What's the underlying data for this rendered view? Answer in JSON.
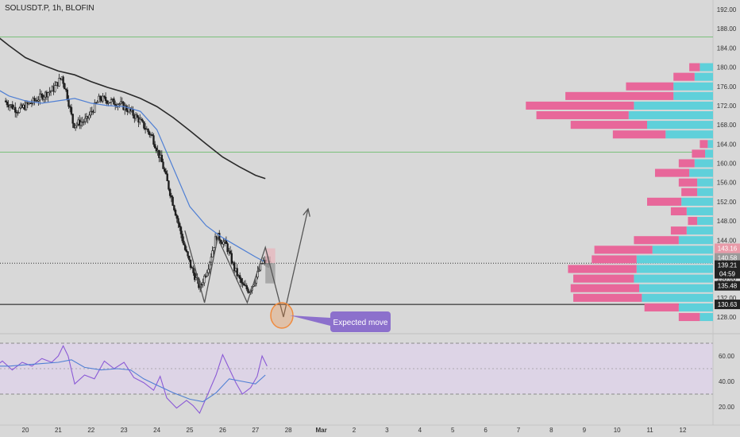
{
  "header": {
    "symbol": "SOLUSDT.P, 1h, BLOFIN"
  },
  "colors": {
    "background": "#d8d8d8",
    "candle_body": "#1e1e1e",
    "ma_fast": "#4f7fd4",
    "ma_slow": "#2a2a2a",
    "support_line": "#111111",
    "resistance_line": "#6ebd6e",
    "vp_up": "#5fd0da",
    "vp_down": "#e8679a",
    "rsi_line": "#8b5ad6",
    "rsi_ma": "#4f7fd4",
    "rsi_band": "#ddd4e6",
    "callout": "#8c70cc",
    "circle": "#f08a3c"
  },
  "chart_data": [
    {
      "type": "candlestick",
      "title": "SOLUSDT.P, 1h, BLOFIN",
      "ylim": [
        126,
        193
      ],
      "y_ticks": [
        "192.00",
        "188.00",
        "184.00",
        "180.00",
        "176.00",
        "172.00",
        "168.00",
        "164.00",
        "160.00",
        "156.00",
        "152.00",
        "148.00",
        "144.00",
        "140.00",
        "136.00",
        "132.00",
        "128.00"
      ],
      "x_ticks": [
        "20",
        "21",
        "22",
        "23",
        "24",
        "25",
        "26",
        "27",
        "28",
        "Mar",
        "2",
        "3",
        "4",
        "5",
        "6",
        "7",
        "8",
        "9",
        "10",
        "11",
        "12"
      ],
      "ohlc_anchors": [
        {
          "t": 19.4,
          "price": 173.0
        },
        {
          "t": 19.8,
          "price": 171.0
        },
        {
          "t": 20.2,
          "price": 172.5
        },
        {
          "t": 20.6,
          "price": 174.2
        },
        {
          "t": 20.9,
          "price": 175.5
        },
        {
          "t": 21.15,
          "price": 178.0
        },
        {
          "t": 21.3,
          "price": 174.5
        },
        {
          "t": 21.5,
          "price": 168.0
        },
        {
          "t": 21.9,
          "price": 169.0
        },
        {
          "t": 22.3,
          "price": 173.5
        },
        {
          "t": 22.9,
          "price": 172.4
        },
        {
          "t": 23.2,
          "price": 171.0
        },
        {
          "t": 23.5,
          "price": 169.0
        },
        {
          "t": 23.9,
          "price": 165.5
        },
        {
          "t": 24.2,
          "price": 160.0
        },
        {
          "t": 24.6,
          "price": 150.0
        },
        {
          "t": 24.9,
          "price": 142.0
        },
        {
          "t": 25.1,
          "price": 138.0
        },
        {
          "t": 25.35,
          "price": 134.0
        },
        {
          "t": 25.6,
          "price": 138.5
        },
        {
          "t": 25.85,
          "price": 145.0
        },
        {
          "t": 26.15,
          "price": 143.0
        },
        {
          "t": 26.4,
          "price": 138.0
        },
        {
          "t": 26.65,
          "price": 134.5
        },
        {
          "t": 26.85,
          "price": 133.5
        },
        {
          "t": 27.05,
          "price": 136.0
        },
        {
          "t": 27.25,
          "price": 139.5
        },
        {
          "t": 27.45,
          "price": 139.21
        }
      ],
      "series": [
        {
          "name": "",
          "values": [
            [
              19.0,
              176.0
            ],
            [
              19.5,
              174.0
            ],
            [
              20.0,
              173.0
            ],
            [
              20.5,
              172.5
            ],
            [
              21.0,
              173.0
            ],
            [
              21.5,
              173.5
            ],
            [
              22.0,
              172.5
            ],
            [
              22.5,
              172.0
            ],
            [
              23.0,
              171.8
            ],
            [
              23.5,
              170.8
            ],
            [
              24.0,
              167.0
            ],
            [
              24.5,
              159.0
            ],
            [
              25.0,
              151.0
            ],
            [
              25.5,
              147.0
            ],
            [
              26.0,
              144.5
            ],
            [
              26.5,
              142.5
            ],
            [
              27.0,
              140.5
            ],
            [
              27.25,
              139.6
            ]
          ]
        },
        {
          "name": "",
          "values": [
            [
              19.0,
              187.2
            ],
            [
              19.5,
              184.5
            ],
            [
              20.0,
              182.0
            ],
            [
              20.5,
              180.5
            ],
            [
              21.0,
              179.2
            ],
            [
              21.5,
              178.4
            ],
            [
              22.0,
              177.0
            ],
            [
              22.5,
              175.8
            ],
            [
              23.0,
              174.8
            ],
            [
              23.5,
              173.5
            ],
            [
              24.0,
              171.8
            ],
            [
              24.5,
              169.5
            ],
            [
              25.0,
              166.8
            ],
            [
              25.5,
              164.0
            ],
            [
              26.0,
              161.3
            ],
            [
              26.5,
              159.3
            ],
            [
              27.0,
              157.5
            ],
            [
              27.3,
              156.8
            ]
          ]
        }
      ],
      "horizontal_lines": [
        {
          "price": 186.3,
          "kind": "resistance"
        },
        {
          "price": 162.3,
          "kind": "resistance"
        },
        {
          "price": 130.63,
          "kind": "support"
        }
      ],
      "price_labels": [
        {
          "text": "143.16",
          "price": 142.3,
          "color": "#e89aa8"
        },
        {
          "text": "140.58",
          "price": 140.3,
          "color": "#9a9a9a"
        },
        {
          "text": "139.21",
          "price": 138.8,
          "color": "#222222"
        },
        {
          "text": "04:59",
          "price": 137.0,
          "color": "#222222"
        },
        {
          "text": "135.48",
          "price": 134.5,
          "color": "#222222"
        },
        {
          "text": "130.63",
          "price": 130.63,
          "color": "#222222"
        }
      ],
      "pattern_path": [
        [
          24.85,
          146.0
        ],
        [
          25.45,
          131.0
        ],
        [
          25.85,
          144.5
        ],
        [
          26.75,
          131.0
        ],
        [
          27.3,
          142.5
        ],
        [
          27.85,
          128.0
        ],
        [
          28.6,
          150.5
        ]
      ],
      "projection_box": {
        "t0": 27.3,
        "t1": 27.6,
        "entry": 139.21,
        "target": 142.3,
        "stop": 135.0
      },
      "annotation": {
        "text": "Expected move"
      },
      "volume_profile": {
        "price_step": 2,
        "rows": [
          {
            "price": 180,
            "up": 1.0,
            "down": 0.8
          },
          {
            "price": 178,
            "up": 1.4,
            "down": 1.6
          },
          {
            "price": 176,
            "up": 3.0,
            "down": 3.6
          },
          {
            "price": 174,
            "up": 3.0,
            "down": 8.2
          },
          {
            "price": 172,
            "up": 6.0,
            "down": 8.2
          },
          {
            "price": 170,
            "up": 6.4,
            "down": 7.0
          },
          {
            "price": 168,
            "up": 5.0,
            "down": 5.8
          },
          {
            "price": 166,
            "up": 3.6,
            "down": 4.0
          },
          {
            "price": 164,
            "up": 0.4,
            "down": 0.6
          },
          {
            "price": 162,
            "up": 0.6,
            "down": 1.0
          },
          {
            "price": 160,
            "up": 1.4,
            "down": 1.2
          },
          {
            "price": 158,
            "up": 1.8,
            "down": 2.6
          },
          {
            "price": 156,
            "up": 1.2,
            "down": 1.4
          },
          {
            "price": 154,
            "up": 1.2,
            "down": 1.2
          },
          {
            "price": 152,
            "up": 2.4,
            "down": 2.6
          },
          {
            "price": 150,
            "up": 2.0,
            "down": 1.2
          },
          {
            "price": 148,
            "up": 1.2,
            "down": 0.7
          },
          {
            "price": 146,
            "up": 2.0,
            "down": 1.2
          },
          {
            "price": 144,
            "up": 2.6,
            "down": 3.4
          },
          {
            "price": 142,
            "up": 4.6,
            "down": 4.4
          },
          {
            "price": 140,
            "up": 5.8,
            "down": 3.4
          },
          {
            "price": 138,
            "up": 5.8,
            "down": 5.2
          },
          {
            "price": 136,
            "up": 6.0,
            "down": 4.6
          },
          {
            "price": 134,
            "up": 5.6,
            "down": 5.2
          },
          {
            "price": 132,
            "up": 5.4,
            "down": 5.2
          },
          {
            "price": 130,
            "up": 2.6,
            "down": 2.6
          },
          {
            "price": 128,
            "up": 1.0,
            "down": 1.6
          }
        ]
      }
    },
    {
      "type": "line",
      "title": "",
      "ylim": [
        12,
        72
      ],
      "y_ticks": [
        "60.00",
        "40.00",
        "20.00"
      ],
      "band": [
        30,
        70
      ],
      "midline": 50,
      "series": [
        {
          "name": "",
          "values": [
            [
              19.0,
              50.0
            ],
            [
              19.3,
              56.0
            ],
            [
              19.6,
              49.0
            ],
            [
              19.9,
              55.0
            ],
            [
              20.2,
              52.0
            ],
            [
              20.5,
              58.0
            ],
            [
              20.8,
              55.0
            ],
            [
              21.0,
              60.0
            ],
            [
              21.15,
              68.0
            ],
            [
              21.3,
              60.0
            ],
            [
              21.5,
              38.0
            ],
            [
              21.8,
              45.0
            ],
            [
              22.1,
              42.0
            ],
            [
              22.4,
              56.0
            ],
            [
              22.7,
              50.0
            ],
            [
              23.0,
              55.0
            ],
            [
              23.3,
              43.0
            ],
            [
              23.6,
              39.0
            ],
            [
              23.9,
              33.0
            ],
            [
              24.1,
              44.0
            ],
            [
              24.3,
              27.0
            ],
            [
              24.6,
              19.0
            ],
            [
              24.9,
              25.0
            ],
            [
              25.1,
              21.0
            ],
            [
              25.3,
              15.0
            ],
            [
              25.5,
              27.0
            ],
            [
              25.8,
              45.0
            ],
            [
              26.0,
              61.0
            ],
            [
              26.2,
              50.0
            ],
            [
              26.4,
              39.0
            ],
            [
              26.6,
              30.0
            ],
            [
              26.85,
              35.0
            ],
            [
              27.05,
              44.0
            ],
            [
              27.2,
              60.0
            ],
            [
              27.35,
              52.0
            ]
          ]
        },
        {
          "name": "",
          "values": [
            [
              19.0,
              52.0
            ],
            [
              19.5,
              52.0
            ],
            [
              20.0,
              53.0
            ],
            [
              20.5,
              54.0
            ],
            [
              21.0,
              55.0
            ],
            [
              21.4,
              57.0
            ],
            [
              21.8,
              51.0
            ],
            [
              22.3,
              49.0
            ],
            [
              22.8,
              50.0
            ],
            [
              23.2,
              49.0
            ],
            [
              23.6,
              42.0
            ],
            [
              24.0,
              37.0
            ],
            [
              24.5,
              31.0
            ],
            [
              25.0,
              26.0
            ],
            [
              25.4,
              24.0
            ],
            [
              25.8,
              31.0
            ],
            [
              26.2,
              42.0
            ],
            [
              26.6,
              40.0
            ],
            [
              27.0,
              38.0
            ],
            [
              27.3,
              45.0
            ]
          ]
        }
      ]
    }
  ]
}
